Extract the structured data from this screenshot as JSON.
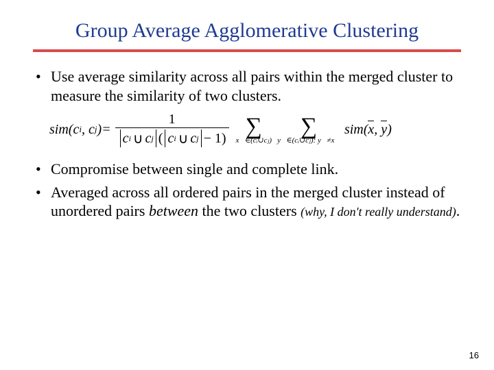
{
  "title": "Group Average Agglomerative Clustering",
  "title_color": "#1f3a93",
  "rule_color": "#d94a4a",
  "bullets": {
    "b1": "Use average similarity across all pairs within the merged cluster to measure the similarity of two clusters.",
    "b2": "Compromise between single and complete link.",
    "b3_prefix": "Averaged across all ordered pairs in the merged cluster instead of unordered pairs ",
    "b3_italic": "between",
    "b3_mid": " the two clusters ",
    "b3_aside": "(why, I don't really understand)",
    "b3_end": "."
  },
  "formula": {
    "lhs_sim": "sim",
    "ci": "c",
    "ci_sub": "i",
    "cj": "c",
    "cj_sub": "j",
    "eq": " = ",
    "num": "1",
    "minus1": " − 1",
    "sum1_below": "x⃗∈(cᵢ∪cⱼ)",
    "sum2_below": "y⃗∈(cᵢ∪cⱼ): y⃗≠x⃗",
    "rhs_sim": "sim",
    "x": "x",
    "y": "y"
  },
  "page_number": "16"
}
